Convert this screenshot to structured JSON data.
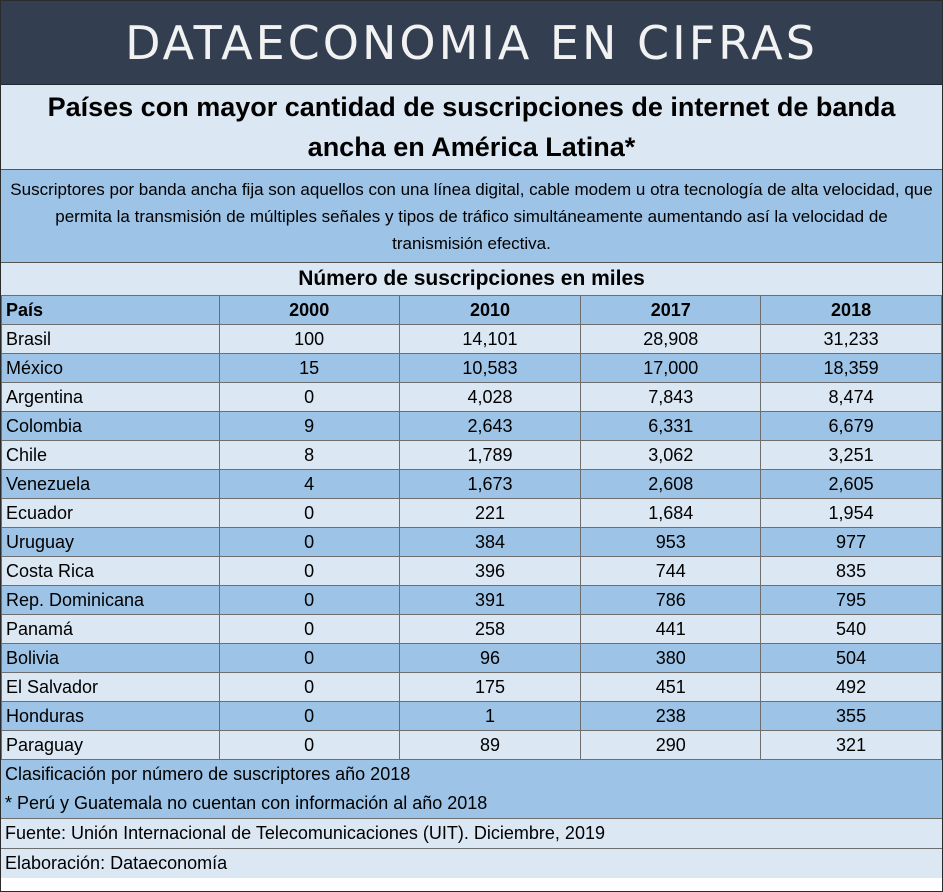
{
  "banner": "DATAECONOMIA EN CIFRAS",
  "title": "Países con mayor cantidad de suscripciones de internet de banda ancha en América Latina*",
  "description": "Suscriptores por banda ancha fija son aquellos con una línea digital, cable modem u otra tecnología de alta velocidad, que permita la transmisión de múltiples señales y tipos de tráfico simultáneamente aumentando así la velocidad de tranismisión efectiva.",
  "units_header": "Número de suscripciones en miles",
  "columns": [
    "País",
    "2000",
    "2010",
    "2017",
    "2018"
  ],
  "rows": [
    [
      "Brasil",
      "100",
      "14,101",
      "28,908",
      "31,233"
    ],
    [
      "México",
      "15",
      "10,583",
      "17,000",
      "18,359"
    ],
    [
      "Argentina",
      "0",
      "4,028",
      "7,843",
      "8,474"
    ],
    [
      "Colombia",
      "9",
      "2,643",
      "6,331",
      "6,679"
    ],
    [
      "Chile",
      "8",
      "1,789",
      "3,062",
      "3,251"
    ],
    [
      "Venezuela",
      "4",
      "1,673",
      "2,608",
      "2,605"
    ],
    [
      "Ecuador",
      "0",
      "221",
      "1,684",
      "1,954"
    ],
    [
      "Uruguay",
      "0",
      "384",
      "953",
      "977"
    ],
    [
      "Costa Rica",
      "0",
      "396",
      "744",
      "835"
    ],
    [
      "Rep. Dominicana",
      "0",
      "391",
      "786",
      "795"
    ],
    [
      "Panamá",
      "0",
      "258",
      "441",
      "540"
    ],
    [
      "Bolivia",
      "0",
      "96",
      "380",
      "504"
    ],
    [
      "El Salvador",
      "0",
      "175",
      "451",
      "492"
    ],
    [
      "Honduras",
      "0",
      "1",
      "238",
      "355"
    ],
    [
      "Paraguay",
      "0",
      "89",
      "290",
      "321"
    ]
  ],
  "notes": [
    "Clasificación por número de suscriptores año 2018",
    "* Perú y Guatemala no cuentan con información al año 2018"
  ],
  "source": "Fuente: Unión Internacional de Telecomunicaciones (UIT). Diciembre, 2019",
  "credit": "Elaboración: Dataeconomía",
  "colors": {
    "banner_bg": "#333f50",
    "light_row": "#dbe7f3",
    "dark_row": "#9dc3e6"
  }
}
